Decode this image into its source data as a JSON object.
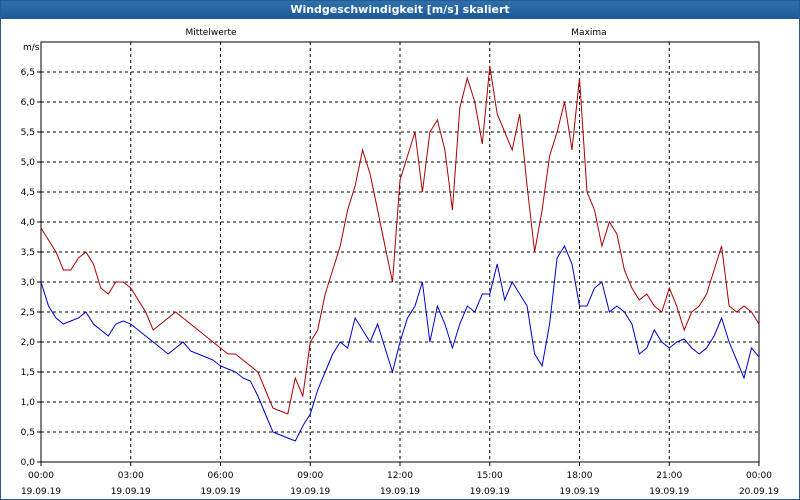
{
  "window": {
    "title": "Windgeschwindigkeit [m/s] skaliert"
  },
  "chart_data": {
    "type": "line",
    "title": "Windgeschwindigkeit [m/s] skaliert",
    "ylabel": "m/s",
    "ylim": [
      0,
      7
    ],
    "xlim_hours": [
      0,
      24
    ],
    "grid": true,
    "y_ticks": [
      "0,0",
      "0,5",
      "1,0",
      "1,5",
      "2,0",
      "2,5",
      "3,0",
      "3,5",
      "4,0",
      "4,5",
      "5,0",
      "5,5",
      "6,0",
      "6,5"
    ],
    "x_ticks": [
      {
        "time": "00:00",
        "date": "19.09.19"
      },
      {
        "time": "03:00",
        "date": "19.09.19"
      },
      {
        "time": "06:00",
        "date": "19.09.19"
      },
      {
        "time": "09:00",
        "date": "19.09.19"
      },
      {
        "time": "12:00",
        "date": "19.09.19"
      },
      {
        "time": "15:00",
        "date": "19.09.19"
      },
      {
        "time": "18:00",
        "date": "19.09.19"
      },
      {
        "time": "21:00",
        "date": "19.09.19"
      },
      {
        "time": "00:00",
        "date": "20.09.19"
      }
    ],
    "series": [
      {
        "name": "Mittelwerte",
        "color": "#0000cc",
        "points": [
          [
            0.0,
            3.0
          ],
          [
            0.25,
            2.6
          ],
          [
            0.5,
            2.4
          ],
          [
            0.75,
            2.3
          ],
          [
            1.0,
            2.35
          ],
          [
            1.25,
            2.4
          ],
          [
            1.5,
            2.5
          ],
          [
            1.75,
            2.3
          ],
          [
            2.0,
            2.2
          ],
          [
            2.25,
            2.1
          ],
          [
            2.5,
            2.3
          ],
          [
            2.75,
            2.35
          ],
          [
            3.0,
            2.3
          ],
          [
            3.25,
            2.2
          ],
          [
            3.5,
            2.1
          ],
          [
            3.75,
            2.0
          ],
          [
            4.0,
            1.9
          ],
          [
            4.25,
            1.8
          ],
          [
            4.5,
            1.9
          ],
          [
            4.75,
            2.0
          ],
          [
            5.0,
            1.85
          ],
          [
            5.25,
            1.8
          ],
          [
            5.5,
            1.75
          ],
          [
            5.75,
            1.7
          ],
          [
            6.0,
            1.6
          ],
          [
            6.25,
            1.55
          ],
          [
            6.5,
            1.5
          ],
          [
            6.75,
            1.4
          ],
          [
            7.0,
            1.35
          ],
          [
            7.25,
            1.1
          ],
          [
            7.5,
            0.8
          ],
          [
            7.75,
            0.5
          ],
          [
            8.0,
            0.45
          ],
          [
            8.25,
            0.4
          ],
          [
            8.5,
            0.35
          ],
          [
            8.75,
            0.6
          ],
          [
            9.0,
            0.8
          ],
          [
            9.25,
            1.2
          ],
          [
            9.5,
            1.5
          ],
          [
            9.75,
            1.8
          ],
          [
            10.0,
            2.0
          ],
          [
            10.25,
            1.9
          ],
          [
            10.5,
            2.4
          ],
          [
            10.75,
            2.2
          ],
          [
            11.0,
            2.0
          ],
          [
            11.25,
            2.3
          ],
          [
            11.5,
            1.9
          ],
          [
            11.75,
            1.5
          ],
          [
            12.0,
            2.0
          ],
          [
            12.25,
            2.4
          ],
          [
            12.5,
            2.6
          ],
          [
            12.75,
            3.0
          ],
          [
            13.0,
            2.0
          ],
          [
            13.25,
            2.6
          ],
          [
            13.5,
            2.3
          ],
          [
            13.75,
            1.9
          ],
          [
            14.0,
            2.3
          ],
          [
            14.25,
            2.6
          ],
          [
            14.5,
            2.5
          ],
          [
            14.75,
            2.8
          ],
          [
            15.0,
            2.8
          ],
          [
            15.25,
            3.3
          ],
          [
            15.5,
            2.7
          ],
          [
            15.75,
            3.0
          ],
          [
            16.0,
            2.8
          ],
          [
            16.25,
            2.6
          ],
          [
            16.5,
            1.8
          ],
          [
            16.75,
            1.6
          ],
          [
            17.0,
            2.3
          ],
          [
            17.25,
            3.4
          ],
          [
            17.5,
            3.6
          ],
          [
            17.75,
            3.3
          ],
          [
            18.0,
            2.6
          ],
          [
            18.25,
            2.6
          ],
          [
            18.5,
            2.9
          ],
          [
            18.75,
            3.0
          ],
          [
            19.0,
            2.5
          ],
          [
            19.25,
            2.6
          ],
          [
            19.5,
            2.5
          ],
          [
            19.75,
            2.3
          ],
          [
            20.0,
            1.8
          ],
          [
            20.25,
            1.9
          ],
          [
            20.5,
            2.2
          ],
          [
            20.75,
            2.0
          ],
          [
            21.0,
            1.9
          ],
          [
            21.25,
            2.0
          ],
          [
            21.5,
            2.05
          ],
          [
            21.75,
            1.9
          ],
          [
            22.0,
            1.8
          ],
          [
            22.25,
            1.9
          ],
          [
            22.5,
            2.1
          ],
          [
            22.75,
            2.4
          ],
          [
            23.0,
            2.0
          ],
          [
            23.25,
            1.7
          ],
          [
            23.5,
            1.4
          ],
          [
            23.75,
            1.9
          ],
          [
            24.0,
            1.75
          ]
        ]
      },
      {
        "name": "Maxima",
        "color": "#aa0000",
        "points": [
          [
            0.0,
            3.9
          ],
          [
            0.25,
            3.7
          ],
          [
            0.5,
            3.5
          ],
          [
            0.75,
            3.2
          ],
          [
            1.0,
            3.2
          ],
          [
            1.25,
            3.4
          ],
          [
            1.5,
            3.5
          ],
          [
            1.75,
            3.3
          ],
          [
            2.0,
            2.9
          ],
          [
            2.25,
            2.8
          ],
          [
            2.5,
            3.0
          ],
          [
            2.75,
            3.0
          ],
          [
            3.0,
            2.9
          ],
          [
            3.25,
            2.7
          ],
          [
            3.5,
            2.5
          ],
          [
            3.75,
            2.2
          ],
          [
            4.0,
            2.3
          ],
          [
            4.25,
            2.4
          ],
          [
            4.5,
            2.5
          ],
          [
            4.75,
            2.4
          ],
          [
            5.0,
            2.3
          ],
          [
            5.25,
            2.2
          ],
          [
            5.5,
            2.1
          ],
          [
            5.75,
            2.0
          ],
          [
            6.0,
            1.9
          ],
          [
            6.25,
            1.8
          ],
          [
            6.5,
            1.8
          ],
          [
            6.75,
            1.7
          ],
          [
            7.0,
            1.6
          ],
          [
            7.25,
            1.5
          ],
          [
            7.5,
            1.2
          ],
          [
            7.75,
            0.9
          ],
          [
            8.0,
            0.85
          ],
          [
            8.25,
            0.8
          ],
          [
            8.5,
            1.4
          ],
          [
            8.75,
            1.1
          ],
          [
            9.0,
            2.0
          ],
          [
            9.25,
            2.2
          ],
          [
            9.5,
            2.8
          ],
          [
            9.75,
            3.2
          ],
          [
            10.0,
            3.6
          ],
          [
            10.25,
            4.2
          ],
          [
            10.5,
            4.6
          ],
          [
            10.75,
            5.2
          ],
          [
            11.0,
            4.8
          ],
          [
            11.25,
            4.2
          ],
          [
            11.5,
            3.6
          ],
          [
            11.75,
            3.0
          ],
          [
            12.0,
            4.7
          ],
          [
            12.25,
            5.1
          ],
          [
            12.5,
            5.5
          ],
          [
            12.75,
            4.5
          ],
          [
            13.0,
            5.5
          ],
          [
            13.25,
            5.7
          ],
          [
            13.5,
            5.2
          ],
          [
            13.75,
            4.2
          ],
          [
            14.0,
            5.9
          ],
          [
            14.25,
            6.4
          ],
          [
            14.5,
            6.0
          ],
          [
            14.75,
            5.3
          ],
          [
            15.0,
            6.6
          ],
          [
            15.25,
            5.8
          ],
          [
            15.5,
            5.5
          ],
          [
            15.75,
            5.2
          ],
          [
            16.0,
            5.8
          ],
          [
            16.25,
            4.6
          ],
          [
            16.5,
            3.5
          ],
          [
            16.75,
            4.2
          ],
          [
            17.0,
            5.1
          ],
          [
            17.25,
            5.5
          ],
          [
            17.5,
            6.0
          ],
          [
            17.75,
            5.2
          ],
          [
            18.0,
            6.4
          ],
          [
            18.25,
            4.5
          ],
          [
            18.5,
            4.2
          ],
          [
            18.75,
            3.6
          ],
          [
            19.0,
            4.0
          ],
          [
            19.25,
            3.8
          ],
          [
            19.5,
            3.2
          ],
          [
            19.75,
            2.9
          ],
          [
            20.0,
            2.7
          ],
          [
            20.25,
            2.8
          ],
          [
            20.5,
            2.6
          ],
          [
            20.75,
            2.5
          ],
          [
            21.0,
            2.9
          ],
          [
            21.25,
            2.6
          ],
          [
            21.5,
            2.2
          ],
          [
            21.75,
            2.5
          ],
          [
            22.0,
            2.6
          ],
          [
            22.25,
            2.8
          ],
          [
            22.5,
            3.2
          ],
          [
            22.75,
            3.6
          ],
          [
            23.0,
            2.6
          ],
          [
            23.25,
            2.5
          ],
          [
            23.5,
            2.6
          ],
          [
            23.75,
            2.5
          ],
          [
            24.0,
            2.3
          ]
        ]
      }
    ]
  }
}
